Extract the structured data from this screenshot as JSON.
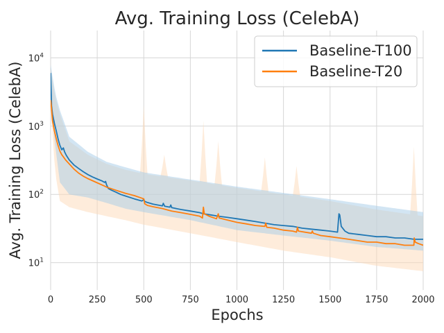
{
  "chart_data": {
    "type": "line",
    "title": "Avg. Training Loss (CelebA)",
    "xlabel": "Epochs",
    "ylabel": "Avg. Training Loss (CelebA)",
    "xlim": [
      0,
      2000
    ],
    "ylim_log10": [
      0.6,
      4.4
    ],
    "yscale": "log",
    "grid": true,
    "legend_position": "top-right",
    "x_ticks": [
      0,
      250,
      500,
      750,
      1000,
      1250,
      1500,
      1750,
      2000
    ],
    "x_tick_labels": [
      "0",
      "250",
      "500",
      "750",
      "1000",
      "1250",
      "1500",
      "1750",
      "2000"
    ],
    "y_ticks": [
      10,
      100,
      1000,
      10000
    ],
    "y_tick_labels": [
      {
        "base": "10",
        "exp": "1"
      },
      {
        "base": "10",
        "exp": "2"
      },
      {
        "base": "10",
        "exp": "3"
      },
      {
        "base": "10",
        "exp": "4"
      }
    ],
    "series": [
      {
        "name": "Baseline-T100",
        "color": "#1f77b4",
        "band_color": "#a6cbe8",
        "points": [
          [
            0,
            6000
          ],
          [
            5,
            2000
          ],
          [
            10,
            1500
          ],
          [
            20,
            1100
          ],
          [
            30,
            850
          ],
          [
            40,
            650
          ],
          [
            50,
            520
          ],
          [
            60,
            450
          ],
          [
            68,
            480
          ],
          [
            75,
            420
          ],
          [
            85,
            370
          ],
          [
            100,
            320
          ],
          [
            125,
            270
          ],
          [
            150,
            240
          ],
          [
            175,
            215
          ],
          [
            200,
            195
          ],
          [
            225,
            180
          ],
          [
            250,
            168
          ],
          [
            275,
            158
          ],
          [
            290,
            150
          ],
          [
            295,
            155
          ],
          [
            300,
            138
          ],
          [
            310,
            122
          ],
          [
            325,
            116
          ],
          [
            350,
            108
          ],
          [
            375,
            100
          ],
          [
            400,
            95
          ],
          [
            450,
            86
          ],
          [
            490,
            80
          ],
          [
            500,
            84
          ],
          [
            505,
            79
          ],
          [
            520,
            76
          ],
          [
            550,
            72
          ],
          [
            600,
            68
          ],
          [
            605,
            74
          ],
          [
            612,
            67
          ],
          [
            640,
            65
          ],
          [
            645,
            70
          ],
          [
            650,
            64
          ],
          [
            700,
            60
          ],
          [
            750,
            57
          ],
          [
            800,
            54
          ],
          [
            820,
            52
          ],
          [
            860,
            50
          ],
          [
            900,
            48
          ],
          [
            950,
            46
          ],
          [
            1000,
            44
          ],
          [
            1050,
            42
          ],
          [
            1100,
            40
          ],
          [
            1150,
            38
          ],
          [
            1200,
            36
          ],
          [
            1250,
            35
          ],
          [
            1300,
            34
          ],
          [
            1350,
            32
          ],
          [
            1400,
            31
          ],
          [
            1450,
            30
          ],
          [
            1500,
            29
          ],
          [
            1540,
            28
          ],
          [
            1548,
            52
          ],
          [
            1552,
            50
          ],
          [
            1560,
            34
          ],
          [
            1580,
            29
          ],
          [
            1600,
            27
          ],
          [
            1650,
            26
          ],
          [
            1700,
            25
          ],
          [
            1750,
            24
          ],
          [
            1800,
            24
          ],
          [
            1850,
            23
          ],
          [
            1900,
            23
          ],
          [
            1950,
            22
          ],
          [
            2000,
            22
          ]
        ],
        "band_lower": [
          [
            0,
            2000
          ],
          [
            25,
            500
          ],
          [
            50,
            150
          ],
          [
            100,
            100
          ],
          [
            200,
            90
          ],
          [
            300,
            75
          ],
          [
            400,
            62
          ],
          [
            500,
            55
          ],
          [
            750,
            42
          ],
          [
            1000,
            30
          ],
          [
            1250,
            25
          ],
          [
            1500,
            21
          ],
          [
            1750,
            17
          ],
          [
            2000,
            15
          ]
        ],
        "band_upper": [
          [
            0,
            8000
          ],
          [
            25,
            3000
          ],
          [
            50,
            1700
          ],
          [
            100,
            700
          ],
          [
            200,
            420
          ],
          [
            300,
            300
          ],
          [
            400,
            250
          ],
          [
            500,
            210
          ],
          [
            750,
            165
          ],
          [
            1000,
            130
          ],
          [
            1250,
            105
          ],
          [
            1500,
            85
          ],
          [
            1750,
            68
          ],
          [
            2000,
            55
          ]
        ]
      },
      {
        "name": "Baseline-T20",
        "color": "#ff7f0e",
        "band_color": "#fdd9b8",
        "points": [
          [
            0,
            2400
          ],
          [
            5,
            1800
          ],
          [
            10,
            1200
          ],
          [
            20,
            850
          ],
          [
            30,
            650
          ],
          [
            40,
            520
          ],
          [
            50,
            430
          ],
          [
            60,
            380
          ],
          [
            70,
            350
          ],
          [
            80,
            320
          ],
          [
            100,
            280
          ],
          [
            125,
            235
          ],
          [
            150,
            205
          ],
          [
            175,
            185
          ],
          [
            200,
            170
          ],
          [
            250,
            148
          ],
          [
            290,
            132
          ],
          [
            300,
            128
          ],
          [
            350,
            115
          ],
          [
            400,
            104
          ],
          [
            450,
            96
          ],
          [
            490,
            88
          ],
          [
            500,
            86
          ],
          [
            505,
            73
          ],
          [
            520,
            69
          ],
          [
            550,
            66
          ],
          [
            600,
            62
          ],
          [
            650,
            57
          ],
          [
            700,
            54
          ],
          [
            750,
            51
          ],
          [
            800,
            48
          ],
          [
            815,
            45
          ],
          [
            820,
            65
          ],
          [
            825,
            52
          ],
          [
            850,
            48
          ],
          [
            890,
            44
          ],
          [
            900,
            52
          ],
          [
            905,
            45
          ],
          [
            950,
            42
          ],
          [
            1000,
            39
          ],
          [
            1050,
            37
          ],
          [
            1100,
            35
          ],
          [
            1150,
            34
          ],
          [
            1155,
            38
          ],
          [
            1160,
            33
          ],
          [
            1200,
            32
          ],
          [
            1250,
            30
          ],
          [
            1300,
            29
          ],
          [
            1320,
            28
          ],
          [
            1325,
            33
          ],
          [
            1330,
            29
          ],
          [
            1400,
            27
          ],
          [
            1405,
            29
          ],
          [
            1410,
            27
          ],
          [
            1450,
            25
          ],
          [
            1500,
            24
          ],
          [
            1550,
            23
          ],
          [
            1600,
            22
          ],
          [
            1650,
            21
          ],
          [
            1700,
            20
          ],
          [
            1750,
            20
          ],
          [
            1800,
            19
          ],
          [
            1850,
            19
          ],
          [
            1900,
            18
          ],
          [
            1950,
            18
          ],
          [
            1952,
            23
          ],
          [
            1957,
            20
          ],
          [
            1975,
            19
          ],
          [
            2000,
            18
          ]
        ],
        "band_lower": [
          [
            0,
            1800
          ],
          [
            25,
            200
          ],
          [
            50,
            80
          ],
          [
            100,
            65
          ],
          [
            200,
            55
          ],
          [
            300,
            48
          ],
          [
            400,
            42
          ],
          [
            500,
            36
          ],
          [
            750,
            27
          ],
          [
            1000,
            20
          ],
          [
            1250,
            15
          ],
          [
            1500,
            12
          ],
          [
            1750,
            9
          ],
          [
            2000,
            7.5
          ]
        ],
        "band_upper": [
          [
            0,
            7000
          ],
          [
            25,
            2600
          ],
          [
            50,
            1500
          ],
          [
            100,
            600
          ],
          [
            200,
            380
          ],
          [
            300,
            280
          ],
          [
            400,
            230
          ],
          [
            500,
            200
          ],
          [
            750,
            160
          ],
          [
            1000,
            125
          ],
          [
            1250,
            100
          ],
          [
            1500,
            80
          ],
          [
            1750,
            60
          ],
          [
            2000,
            48
          ]
        ],
        "spikes": [
          [
            500,
            2000
          ],
          [
            610,
            380
          ],
          [
            820,
            1200
          ],
          [
            900,
            600
          ],
          [
            1150,
            350
          ],
          [
            1320,
            260
          ],
          [
            1950,
            500
          ]
        ]
      }
    ]
  }
}
